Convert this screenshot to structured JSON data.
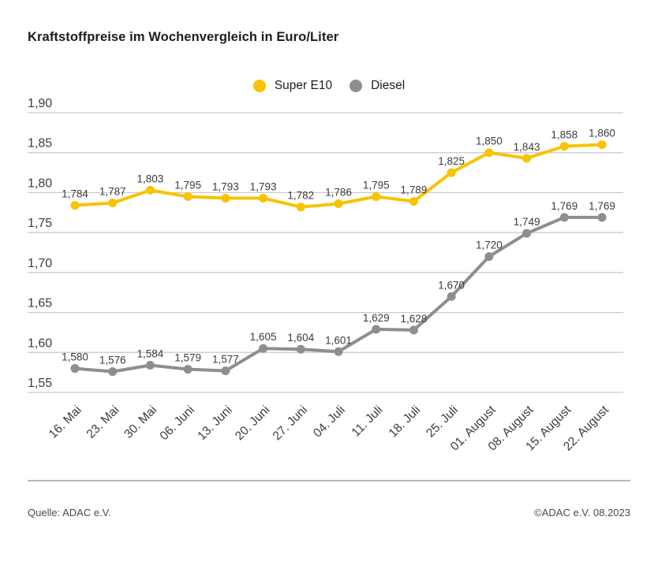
{
  "title": "Kraftstoffpreise im Wochenvergleich in Euro/Liter",
  "footer": {
    "source": "Quelle: ADAC e.V.",
    "copyright": "©ADAC e.V. 08.2023"
  },
  "colors": {
    "super_e10": "#F8C300",
    "diesel": "#8E8E8E",
    "gridline": "#C9C9C9",
    "label_text": "#3C3C3B"
  },
  "chart_data": {
    "type": "line",
    "title": "Kraftstoffpreise im Wochenvergleich in Euro/Liter",
    "categories": [
      "16. Mai",
      "23. Mai",
      "30. Mai",
      "06. Juni",
      "13. Juni",
      "20. Juni",
      "27. Juni",
      "04. Juli",
      "11. Juli",
      "18. Juli",
      "25. Juli",
      "01. August",
      "08. August",
      "15. August",
      "22. August"
    ],
    "series": [
      {
        "name": "Super E10",
        "color": "#F8C300",
        "values": [
          1.784,
          1.787,
          1.803,
          1.795,
          1.793,
          1.793,
          1.782,
          1.786,
          1.795,
          1.789,
          1.825,
          1.85,
          1.843,
          1.858,
          1.86
        ]
      },
      {
        "name": "Diesel",
        "color": "#8E8E8E",
        "values": [
          1.58,
          1.576,
          1.584,
          1.579,
          1.577,
          1.605,
          1.604,
          1.601,
          1.629,
          1.628,
          1.67,
          1.72,
          1.749,
          1.769,
          1.769
        ]
      }
    ],
    "xlabel": "",
    "ylabel": "",
    "ylim": [
      1.55,
      1.9
    ],
    "yticks": [
      1.9,
      1.85,
      1.8,
      1.75,
      1.7,
      1.65,
      1.6,
      1.55
    ],
    "grid": true,
    "legend_position": "top-center",
    "decimal_separator": ",",
    "value_label_decimals": 3,
    "tick_label_decimals": 2
  }
}
